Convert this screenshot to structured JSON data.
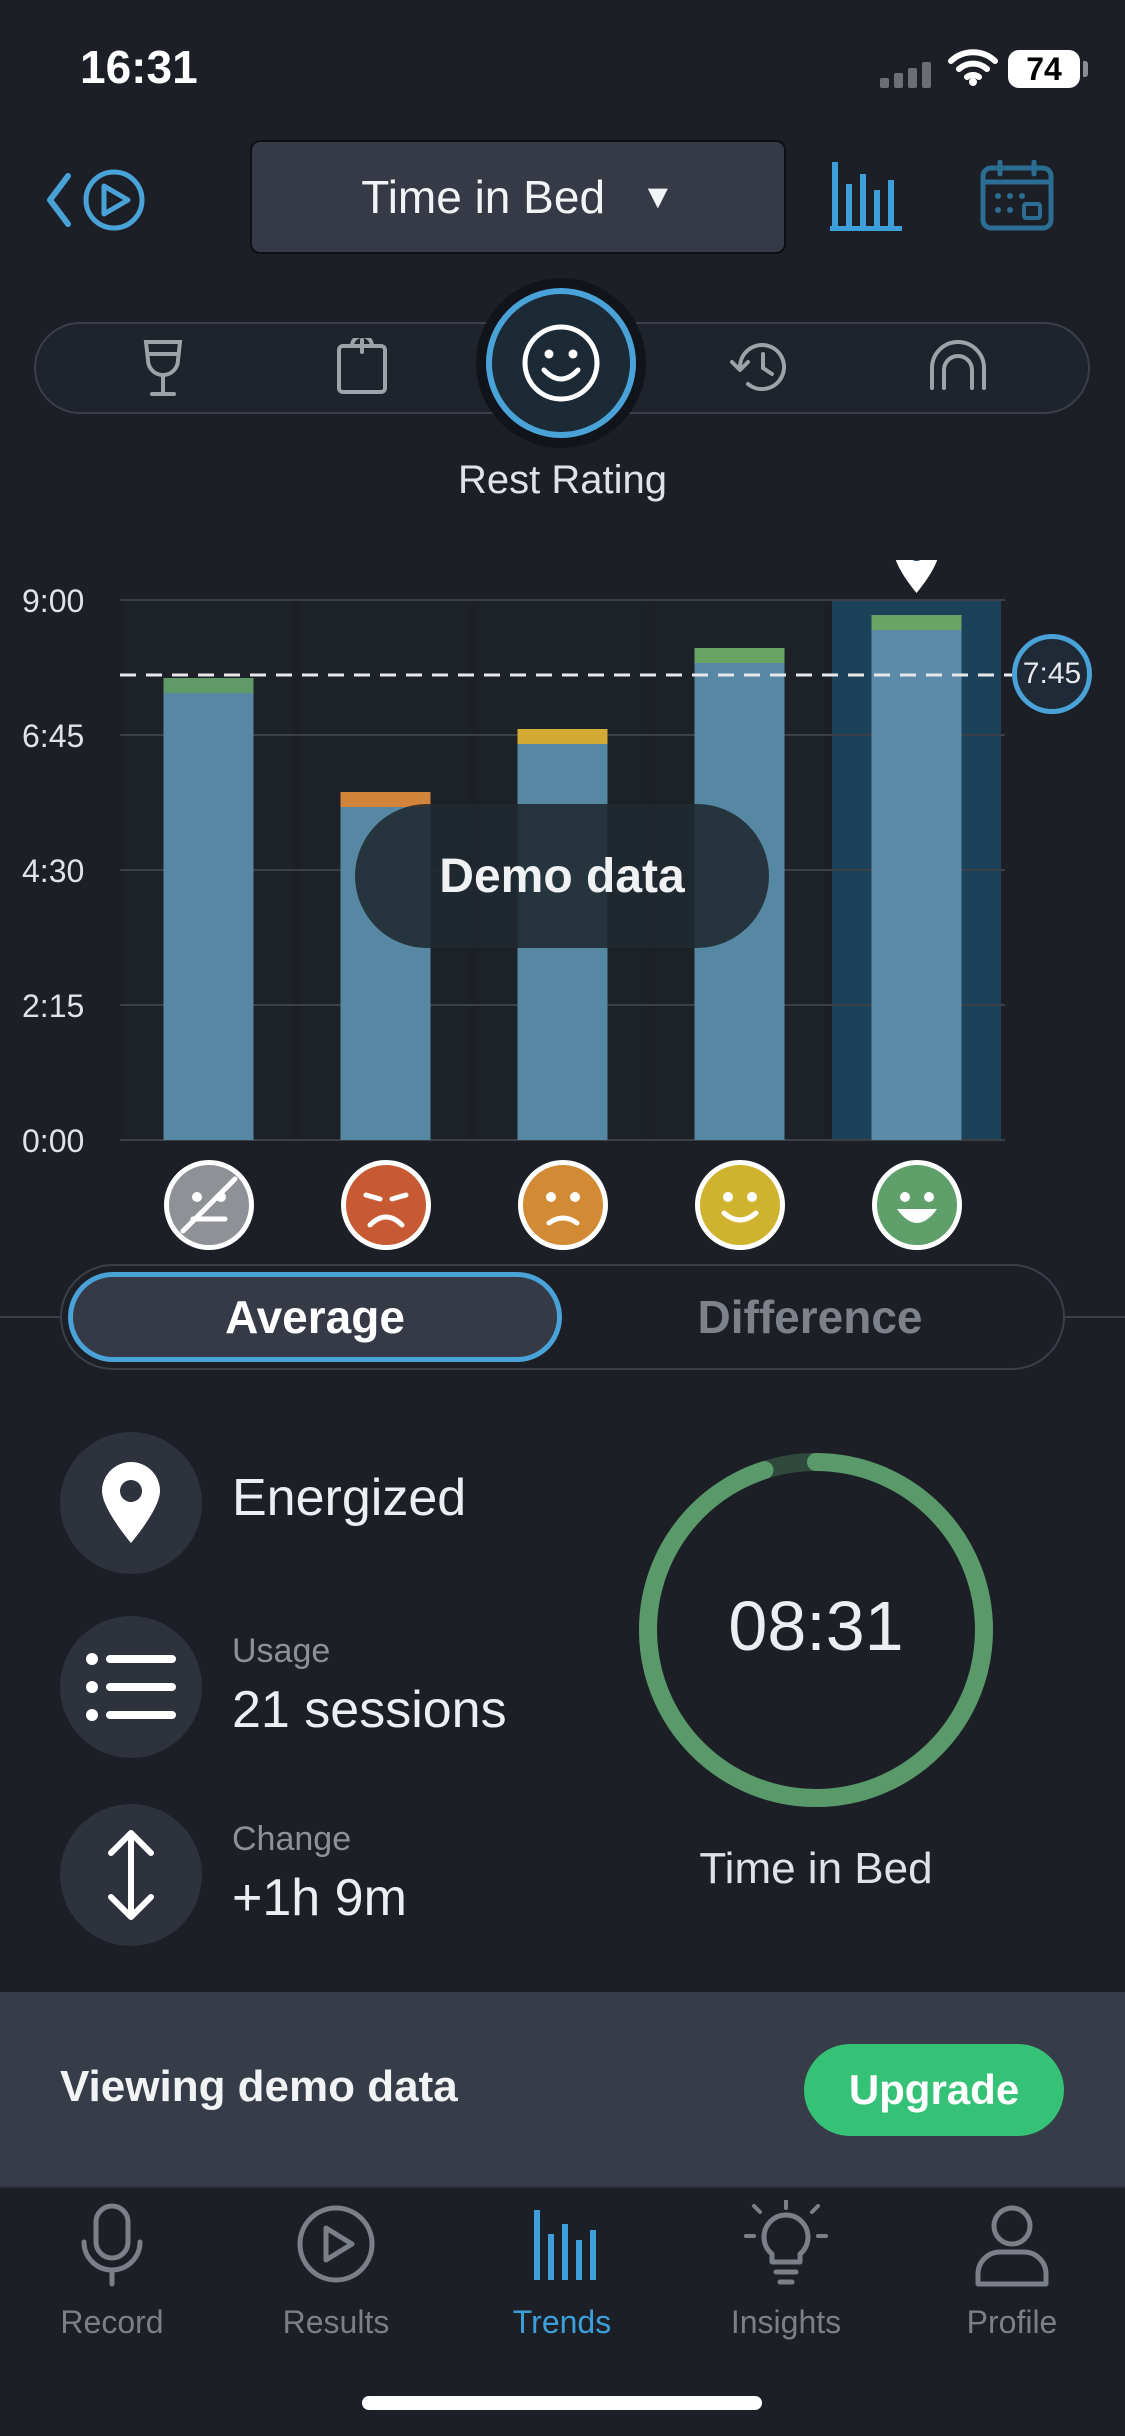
{
  "status_bar": {
    "time": "16:31",
    "battery": "74"
  },
  "header": {
    "metric_select": "Time in Bed"
  },
  "filter_bar": {
    "selected_label": "Rest Rating"
  },
  "chart_data": {
    "type": "bar",
    "categories": [
      "rating-1",
      "rating-2",
      "rating-3",
      "rating-4",
      "rating-5"
    ],
    "y_ticks": [
      "9:00",
      "6:45",
      "4:30",
      "2:15",
      "0:00"
    ],
    "y_range_hours": [
      0,
      9
    ],
    "series": [
      {
        "values": [
          7.45,
          5.55,
          6.6,
          7.95,
          8.5
        ]
      },
      {
        "values": [
          0.25,
          0.25,
          0.25,
          0.25,
          0.25
        ]
      }
    ],
    "reference_line": {
      "value_hours": 7.75,
      "label": "7:45"
    },
    "highlighted_index": 4,
    "watermark": "Demo data"
  },
  "rating_faces": [
    {
      "name": "none",
      "color": "#8e9196"
    },
    {
      "name": "awful",
      "color": "#c75a32"
    },
    {
      "name": "poor",
      "color": "#d28a34"
    },
    {
      "name": "good",
      "color": "#cfb22e"
    },
    {
      "name": "great",
      "color": "#5fa06a"
    }
  ],
  "toggle": {
    "average": "Average",
    "difference": "Difference"
  },
  "stats": {
    "rating_label": "Energized",
    "usage_title": "Usage",
    "usage_value": "21 sessions",
    "change_title": "Change",
    "change_value": "+1h 9m"
  },
  "ring": {
    "time": "08:31",
    "label": "Time in Bed",
    "fraction": 0.95
  },
  "demo_banner": {
    "text": "Viewing demo data",
    "button": "Upgrade"
  },
  "tabs": [
    {
      "label": "Record",
      "icon": "microphone-icon"
    },
    {
      "label": "Results",
      "icon": "play-circle-icon"
    },
    {
      "label": "Trends",
      "icon": "bar-chart-icon"
    },
    {
      "label": "Insights",
      "icon": "lightbulb-icon"
    },
    {
      "label": "Profile",
      "icon": "person-icon"
    }
  ],
  "colors": {
    "accent": "#4aa3d8",
    "bar": "#5688a4",
    "ring": "#5a9a6a",
    "upgrade": "#35c276"
  }
}
